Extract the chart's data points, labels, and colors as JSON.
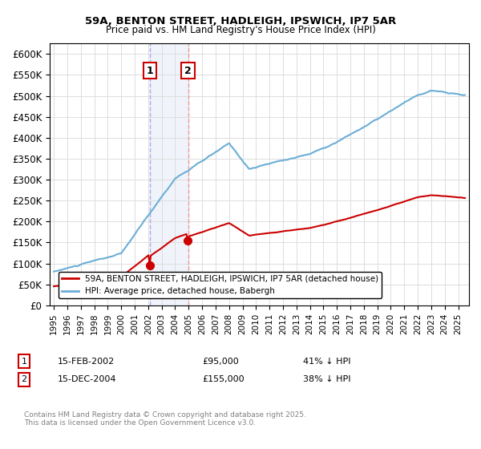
{
  "title1": "59A, BENTON STREET, HADLEIGH, IPSWICH, IP7 5AR",
  "title2": "Price paid vs. HM Land Registry's House Price Index (HPI)",
  "legend_line1": "59A, BENTON STREET, HADLEIGH, IPSWICH, IP7 5AR (detached house)",
  "legend_line2": "HPI: Average price, detached house, Babergh",
  "transaction1_label": "1",
  "transaction1_date": "15-FEB-2002",
  "transaction1_price": "£95,000",
  "transaction1_hpi": "41% ↓ HPI",
  "transaction2_label": "2",
  "transaction2_date": "15-DEC-2004",
  "transaction2_price": "£155,000",
  "transaction2_hpi": "38% ↓ HPI",
  "footer": "Contains HM Land Registry data © Crown copyright and database right 2025.\nThis data is licensed under the Open Government Licence v3.0.",
  "hpi_color": "#6baed6",
  "property_color": "#cc0000",
  "vline1_color": "#aec6e8",
  "vline2_color": "#f4a0a0",
  "highlight_color": "#d0e4f7",
  "ylim_max": 625000,
  "ylabel_ticks": [
    0,
    50000,
    100000,
    150000,
    200000,
    250000,
    300000,
    350000,
    400000,
    450000,
    500000,
    550000,
    600000
  ],
  "transaction1_x": 2002.12,
  "transaction2_x": 2004.96,
  "background_color": "#ffffff",
  "grid_color": "#dddddd"
}
